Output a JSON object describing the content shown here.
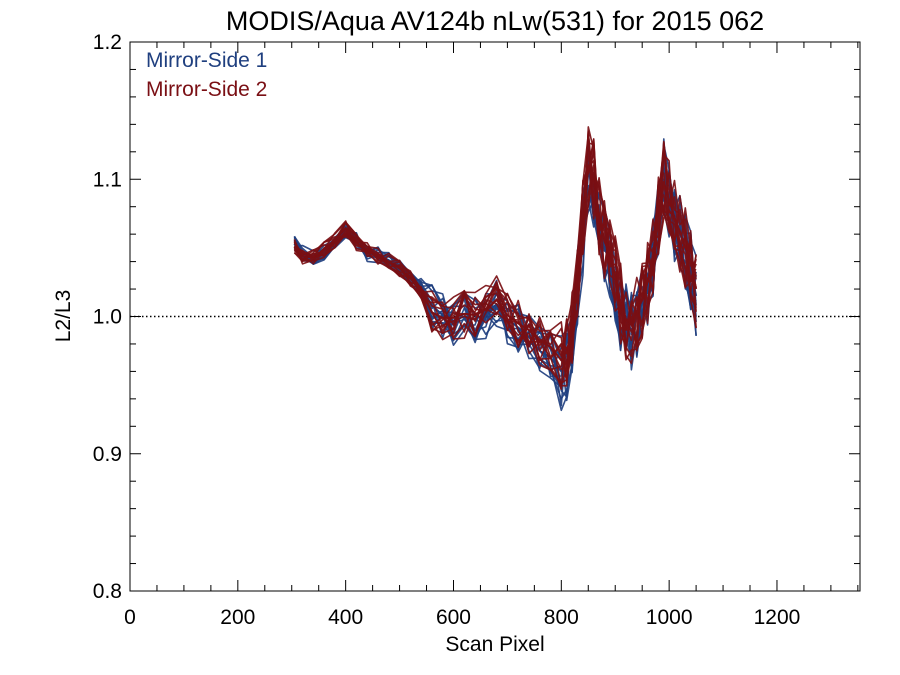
{
  "chart_data": {
    "type": "line",
    "title": "MODIS/Aqua AV124b nLw(531) for 2015 062",
    "xlabel": "Scan Pixel",
    "ylabel": "L2/L3",
    "xlim": [
      0,
      1354
    ],
    "ylim": [
      0.8,
      1.2
    ],
    "xticks": [
      "0",
      "200",
      "400",
      "600",
      "800",
      "1000",
      "1200"
    ],
    "yticks": [
      "0.8",
      "0.9",
      "1.0",
      "1.1",
      "1.2"
    ],
    "reference_line": {
      "y": 1.0,
      "style": "dotted"
    },
    "grid": false,
    "legend_position": "top-left",
    "colors": {
      "mirror_side_1": "#1f3f7f",
      "mirror_side_2": "#7a0f14"
    },
    "series": [
      {
        "name": "Mirror-Side 1",
        "color": "#1f3f7f",
        "x": [
          305,
          320,
          340,
          360,
          380,
          400,
          420,
          440,
          460,
          480,
          500,
          520,
          540,
          560,
          580,
          600,
          620,
          640,
          660,
          680,
          700,
          720,
          740,
          760,
          780,
          800,
          810,
          820,
          830,
          840,
          850,
          860,
          870,
          880,
          890,
          900,
          910,
          920,
          930,
          940,
          950,
          960,
          970,
          980,
          990,
          1000,
          1010,
          1020,
          1030,
          1040,
          1050
        ],
        "values": [
          1.053,
          1.046,
          1.044,
          1.047,
          1.055,
          1.063,
          1.055,
          1.046,
          1.045,
          1.041,
          1.036,
          1.029,
          1.022,
          1.008,
          1.001,
          0.997,
          1.0,
          0.998,
          1.002,
          1.009,
          0.998,
          0.992,
          0.985,
          0.975,
          0.97,
          0.96,
          0.968,
          0.985,
          1.02,
          1.06,
          1.105,
          1.095,
          1.07,
          1.05,
          1.04,
          1.025,
          1.005,
          0.995,
          0.99,
          1.0,
          1.01,
          1.02,
          1.04,
          1.07,
          1.1,
          1.08,
          1.07,
          1.06,
          1.05,
          1.035,
          1.015
        ]
      },
      {
        "name": "Mirror-Side 2",
        "color": "#7a0f14",
        "x": [
          305,
          320,
          340,
          360,
          380,
          400,
          420,
          440,
          460,
          480,
          500,
          520,
          540,
          560,
          580,
          600,
          620,
          640,
          660,
          680,
          700,
          720,
          740,
          760,
          780,
          800,
          810,
          820,
          830,
          840,
          850,
          860,
          870,
          880,
          890,
          900,
          910,
          920,
          930,
          940,
          950,
          960,
          970,
          980,
          990,
          1000,
          1010,
          1020,
          1030,
          1040,
          1050
        ],
        "values": [
          1.051,
          1.044,
          1.043,
          1.049,
          1.056,
          1.064,
          1.054,
          1.048,
          1.044,
          1.04,
          1.035,
          1.028,
          1.018,
          1.003,
          0.999,
          0.999,
          1.002,
          1.001,
          1.005,
          1.012,
          1.001,
          0.995,
          0.99,
          0.982,
          0.978,
          0.968,
          0.975,
          0.99,
          1.03,
          1.07,
          1.11,
          1.1,
          1.075,
          1.055,
          1.045,
          1.03,
          1.01,
          0.998,
          0.994,
          1.004,
          1.012,
          1.025,
          1.045,
          1.075,
          1.098,
          1.085,
          1.072,
          1.062,
          1.05,
          1.04,
          1.02
        ]
      }
    ]
  }
}
